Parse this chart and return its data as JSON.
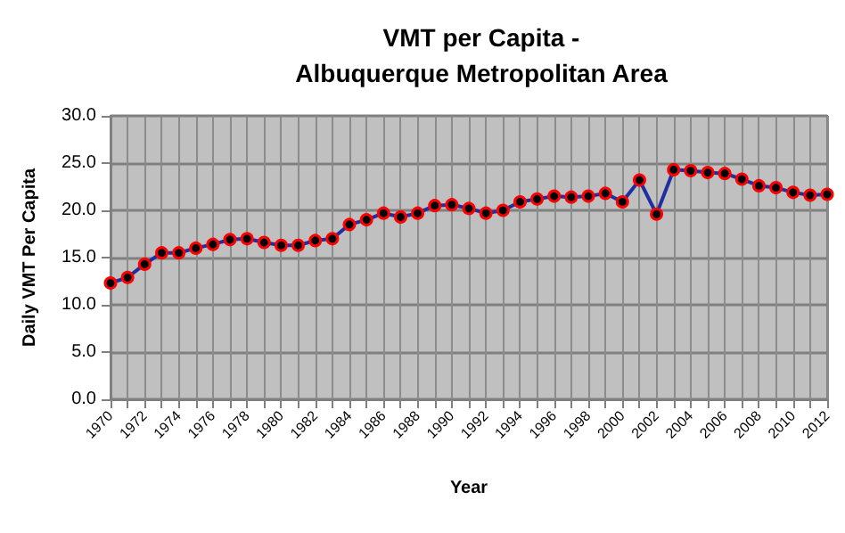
{
  "chart_data": {
    "type": "line",
    "title": "VMT per Capita -\nAlbuquerque Metropolitan Area",
    "xlabel": "Year",
    "ylabel": "Daily VMT Per Capita",
    "categories": [
      "1970",
      null,
      "1972",
      null,
      "1974",
      null,
      "1976",
      null,
      "1978",
      null,
      "1980",
      null,
      "1982",
      null,
      "1984",
      null,
      "1986",
      null,
      "1988",
      null,
      "1990",
      null,
      "1992",
      null,
      "1994",
      null,
      "1996",
      null,
      "1998",
      null,
      "2000",
      null,
      "2002",
      null,
      "2004",
      null,
      "2006",
      null,
      "2008",
      null,
      "2010",
      null,
      "2012"
    ],
    "series": [
      {
        "color": "#1f2f9f",
        "values": [
          12.3,
          12.9,
          14.3,
          15.5,
          15.5,
          16.0,
          16.4,
          16.9,
          17.0,
          16.6,
          16.3,
          16.3,
          16.8,
          17.0,
          18.5,
          19.0,
          19.7,
          19.3,
          19.7,
          20.5,
          20.6,
          20.2,
          19.7,
          20.0,
          20.9,
          21.2,
          21.5,
          21.4,
          21.5,
          21.8,
          20.9,
          23.2,
          19.6,
          24.3,
          24.2,
          24.0,
          23.9,
          23.3,
          22.6,
          22.4,
          21.9,
          21.6,
          21.7
        ]
      }
    ],
    "ylim": [
      0,
      30
    ],
    "yticks": [
      {
        "value": 0,
        "label": "0.0"
      },
      {
        "value": 5,
        "label": "5.0"
      },
      {
        "value": 10,
        "label": "10.0"
      },
      {
        "value": 15,
        "label": "15.0"
      },
      {
        "value": 20,
        "label": "20.0"
      },
      {
        "value": 25,
        "label": "25.0"
      },
      {
        "value": 30,
        "label": "30.0"
      }
    ],
    "grid": true,
    "marker": "circle",
    "line_style": "solid"
  }
}
